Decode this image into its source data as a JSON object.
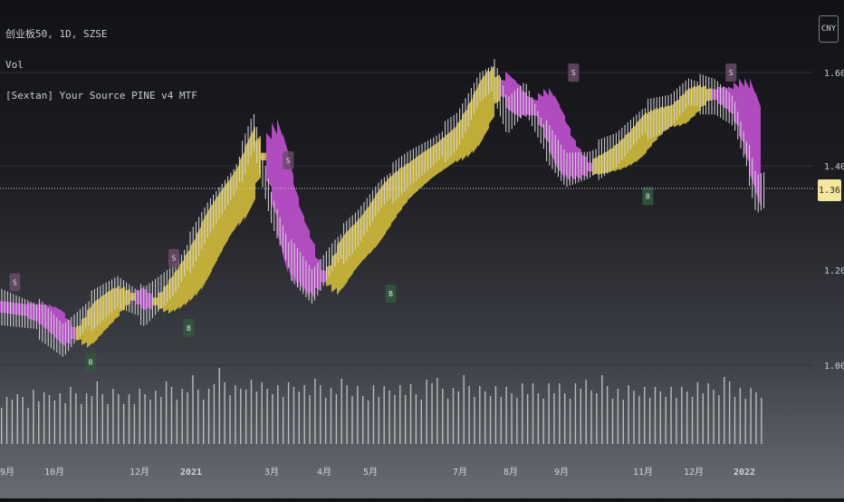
{
  "header": {
    "symbol_line": "创业板50, 1D, SZSE",
    "volume_label": "Vol",
    "indicator_label": "[Sextan] Your Source PINE v4 MTF"
  },
  "price_axis": {
    "currency": "CNY",
    "last_price": "1.36"
  },
  "colors": {
    "bull_cloud": "#c9b53a",
    "bear_cloud": "#b84fc8",
    "candle": "#d8d8d8",
    "volume": "#cfcfcf",
    "buy_marker": "#2f5a3c",
    "sell_marker": "#6a4a6a",
    "last_price_bg": "#f2e79c"
  },
  "chart_data": {
    "type": "line",
    "title": "创业板50, 1D, SZSE",
    "y_axis_ticks": [
      "1.60",
      "1.40",
      "1.20",
      "1.00"
    ],
    "x_axis_ticks": [
      "9月",
      "10月",
      "12月",
      "2021",
      "3月",
      "4月",
      "5月",
      "7月",
      "8月",
      "9月",
      "11月",
      "12月",
      "2022"
    ],
    "ylim": [
      0.9,
      1.65
    ],
    "last_price": 1.36,
    "grid": true,
    "series": [
      {
        "name": "Vol",
        "kind": "volume",
        "values": [
          40,
          38,
          44,
          36,
          42,
          39,
          45,
          41,
          37,
          43,
          46,
          40,
          38,
          42,
          44,
          41,
          39,
          45,
          47,
          42,
          40,
          43,
          46,
          44,
          41,
          39,
          42,
          45,
          48,
          44,
          46,
          49,
          52,
          47,
          45,
          50,
          55,
          48,
          46,
          44,
          58,
          62,
          55,
          50,
          47,
          52,
          60,
          57,
          53,
          49,
          51,
          54,
          50,
          46,
          48,
          52,
          56,
          49,
          47,
          51,
          53,
          48,
          45,
          47,
          50,
          52,
          49,
          46,
          44,
          48,
          51,
          47,
          45,
          49,
          53,
          50,
          48,
          46,
          44,
          47,
          55,
          60,
          52,
          49,
          47,
          45,
          50,
          54,
          51,
          48,
          46,
          49,
          53,
          50,
          47,
          44,
          46,
          50,
          52,
          49,
          47,
          45,
          48,
          51,
          49,
          46,
          44,
          47,
          50,
          53,
          49,
          46,
          52,
          58,
          55,
          50,
          47,
          44,
          46,
          49,
          52,
          48,
          45,
          43,
          47,
          50,
          47,
          44,
          42,
          46,
          49,
          51,
          48,
          45,
          47,
          50,
          56,
          60,
          52,
          48,
          45,
          43,
          47,
          50
        ]
      }
    ],
    "signals": [
      {
        "type": "S",
        "date": "2020-08-25",
        "price": 1.14
      },
      {
        "type": "S",
        "date": "2020-12-10",
        "price": 1.19
      },
      {
        "type": "B",
        "date": "2020-10-15",
        "price": 1.04
      },
      {
        "type": "B",
        "date": "2020-12-20",
        "price": 1.11
      },
      {
        "type": "S",
        "date": "2021-02-25",
        "price": 1.39
      },
      {
        "type": "B",
        "date": "2021-05-05",
        "price": 1.18
      },
      {
        "type": "S",
        "date": "2021-09-05",
        "price": 1.57
      },
      {
        "type": "B",
        "date": "2021-10-25",
        "price": 1.38
      },
      {
        "type": "S",
        "date": "2021-12-20",
        "price": 1.57
      }
    ]
  }
}
